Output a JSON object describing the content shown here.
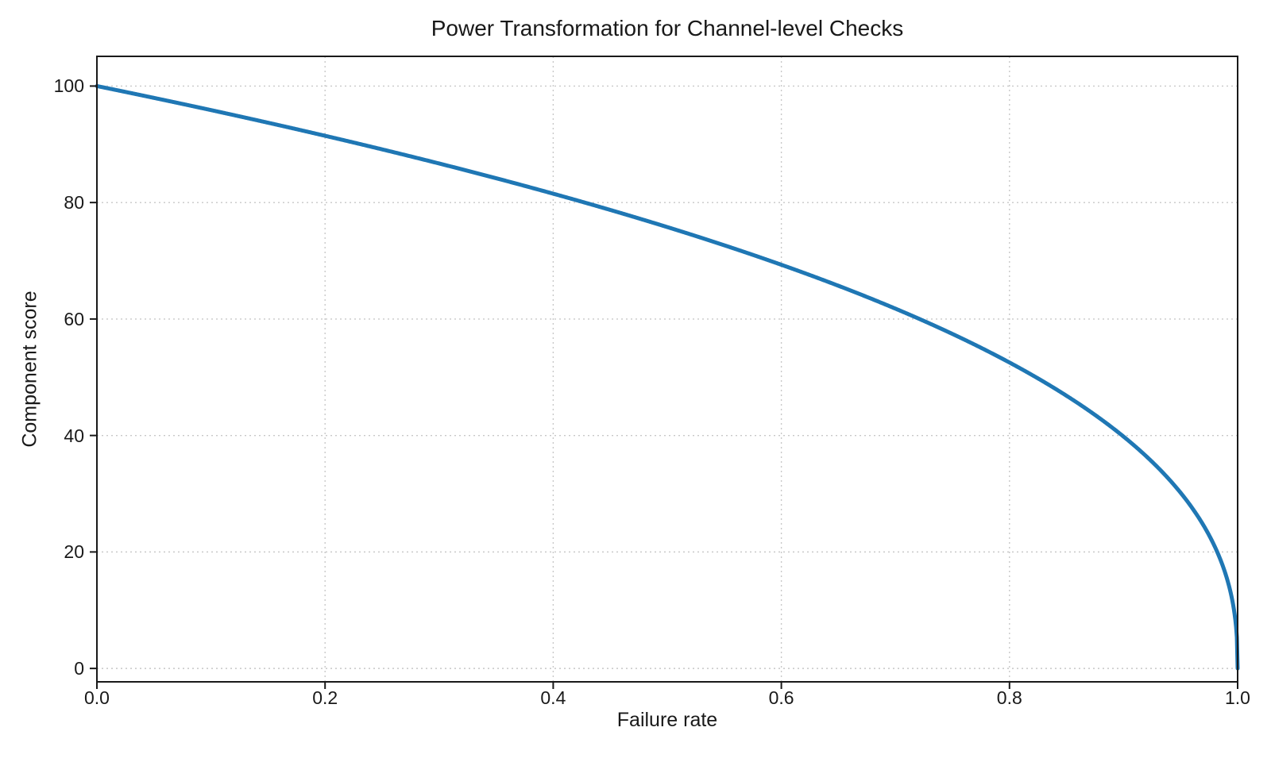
{
  "chart_data": {
    "type": "line",
    "title": "Power Transformation for Channel-level Checks",
    "xlabel": "Failure rate",
    "ylabel": "Component score",
    "xlim": [
      0.0,
      1.0
    ],
    "ylim": [
      -2.3,
      105.1
    ],
    "x_ticks": [
      0.0,
      0.2,
      0.4,
      0.6,
      0.8,
      1.0
    ],
    "x_tick_labels": [
      "0.0",
      "0.2",
      "0.4",
      "0.6",
      "0.8",
      "1.0"
    ],
    "y_ticks": [
      0,
      20,
      40,
      60,
      80,
      100
    ],
    "y_tick_labels": [
      "0",
      "20",
      "40",
      "60",
      "80",
      "100"
    ],
    "grid": {
      "visible": true,
      "style": "dotted",
      "color": "#c8c8c8"
    },
    "legend": null,
    "colors": {
      "line": "#1f77b4",
      "text": "#191919",
      "spine": "#191919"
    },
    "series": [
      {
        "name": "Component score",
        "color": "#1f77b4",
        "line_width": 5,
        "formula": "score = 100 * (1 - failure_rate)^0.4",
        "power": 0.4,
        "scale": 100,
        "x": [
          0,
          0.05,
          0.1,
          0.15,
          0.2,
          0.25,
          0.3,
          0.35,
          0.4,
          0.45,
          0.5,
          0.55,
          0.6,
          0.65,
          0.7,
          0.75,
          0.8,
          0.85,
          0.9,
          0.95,
          0.98,
          0.99,
          1.0
        ],
        "y": [
          100,
          97.97,
          95.87,
          93.71,
          91.46,
          89.13,
          86.7,
          84.17,
          81.52,
          78.73,
          75.79,
          72.66,
          69.31,
          65.7,
          61.78,
          57.43,
          52.53,
          46.82,
          39.81,
          30.17,
          20.91,
          15.85,
          0
        ]
      }
    ]
  }
}
